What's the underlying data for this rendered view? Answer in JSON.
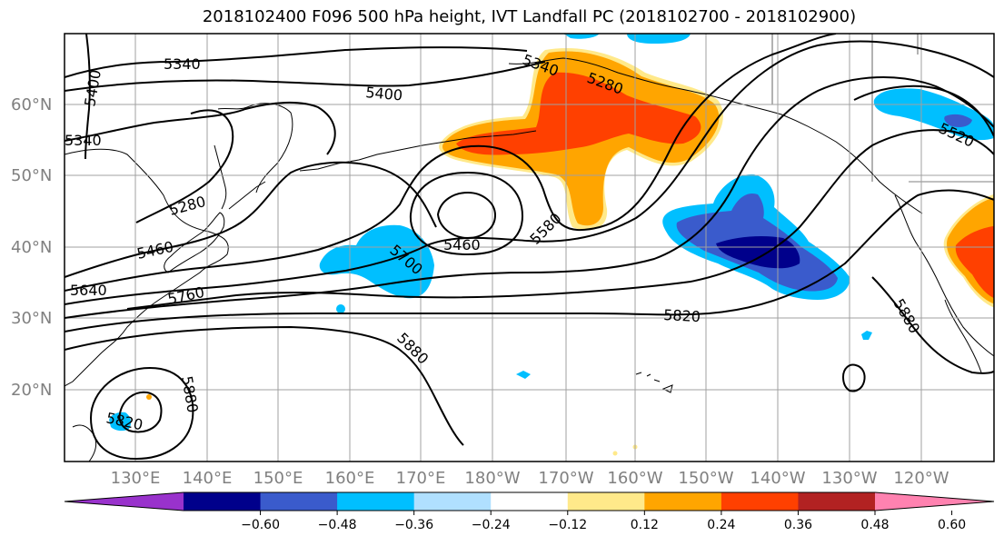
{
  "title": "2018102400 F096 500 hPa height, IVT Landfall PC (2018102700 - 2018102900)",
  "lat_labels": [
    "60°N",
    "50°N",
    "40°N",
    "30°N",
    "20°N"
  ],
  "lon_labels": [
    "130°E",
    "140°E",
    "150°E",
    "160°E",
    "170°E",
    "180°W",
    "170°W",
    "160°W",
    "150°W",
    "140°W",
    "130°W",
    "120°W"
  ],
  "contour_labels": [
    "5340",
    "5400",
    "5400",
    "5340",
    "5340",
    "5280",
    "5520",
    "5280",
    "5460",
    "5460",
    "5580",
    "5700",
    "5640",
    "5760",
    "5820",
    "5880",
    "5880",
    "5880",
    "5820"
  ],
  "colorbar": {
    "colors": [
      "#9932cc",
      "#00008b",
      "#3a5bcc",
      "#00bfff",
      "#b0e0ff",
      "#ffffff",
      "#ffe98a",
      "#ffa500",
      "#ff4000",
      "#b22222",
      "#ff82b0"
    ],
    "tick_labels": [
      "−0.60",
      "−0.48",
      "−0.36",
      "−0.24",
      "−0.12",
      "0.12",
      "0.24",
      "0.36",
      "0.48",
      "0.60"
    ]
  },
  "colors": {
    "neg_light": "#b0e0ff",
    "neg_mid": "#00bfff",
    "neg_strong": "#3a5bcc",
    "neg_max": "#00008b",
    "pos_light": "#ffe98a",
    "pos_mid": "#ffa500",
    "pos_strong": "#ff4000",
    "grid": "#a0a0a0"
  }
}
